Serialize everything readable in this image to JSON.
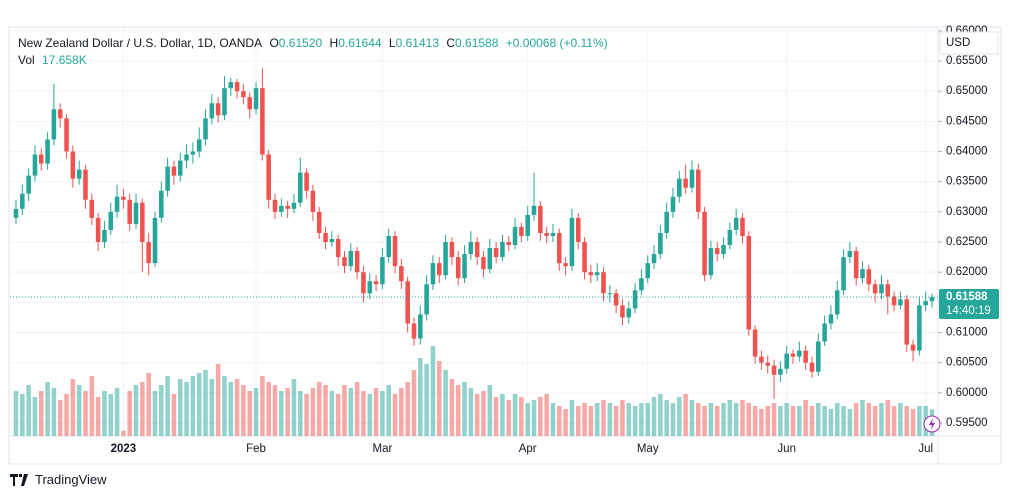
{
  "header": {
    "symbol": "New Zealand Dollar / U.S. Dollar, 1D, OANDA",
    "ohlc": [
      {
        "label": "O",
        "value": "0.61520"
      },
      {
        "label": "H",
        "value": "0.61644"
      },
      {
        "label": "L",
        "value": "0.61413"
      },
      {
        "label": "C",
        "value": "0.61588"
      }
    ],
    "change": "+0.00068 (+0.11%)",
    "volume_label": "Vol",
    "volume_value": "17.658K"
  },
  "currency": "USD",
  "last_price": {
    "label": "0.61588",
    "countdown": "14:40:19"
  },
  "brand": "TradingView",
  "chart_data": {
    "type": "candlestick",
    "up_color": "#26a69a",
    "down_color": "#ef5350",
    "grid": true,
    "ylim": [
      0.59285,
      0.66047
    ],
    "yticks": [
      {
        "value": 0.595,
        "label": "0.59500"
      },
      {
        "value": 0.6,
        "label": "0.60000"
      },
      {
        "value": 0.605,
        "label": "0.60500"
      },
      {
        "value": 0.61,
        "label": "0.61000"
      },
      {
        "value": 0.615,
        "label": "0.61500"
      },
      {
        "value": 0.62,
        "label": "0.62000"
      },
      {
        "value": 0.625,
        "label": "0.62500"
      },
      {
        "value": 0.63,
        "label": "0.63000"
      },
      {
        "value": 0.635,
        "label": "0.63500"
      },
      {
        "value": 0.64,
        "label": "0.64000"
      },
      {
        "value": 0.645,
        "label": "0.64500"
      },
      {
        "value": 0.65,
        "label": "0.65000"
      },
      {
        "value": 0.655,
        "label": "0.65500"
      },
      {
        "value": 0.66,
        "label": "0.66000"
      }
    ],
    "xticks": [
      {
        "value": 17,
        "label": "2023"
      },
      {
        "value": 38,
        "label": "Feb"
      },
      {
        "value": 58,
        "label": "Mar"
      },
      {
        "value": 81,
        "label": "Apr"
      },
      {
        "value": 100,
        "label": "May"
      },
      {
        "value": 122,
        "label": "Jun"
      },
      {
        "value": 144,
        "label": "Jul"
      }
    ],
    "open": [
      0.629,
      0.6305,
      0.633,
      0.636,
      0.6395,
      0.638,
      0.642,
      0.647,
      0.6455,
      0.64,
      0.6355,
      0.637,
      0.632,
      0.629,
      0.625,
      0.627,
      0.63,
      0.6325,
      0.632,
      0.628,
      0.6315,
      0.625,
      0.6215,
      0.629,
      0.6335,
      0.6375,
      0.636,
      0.6385,
      0.6395,
      0.64,
      0.642,
      0.6455,
      0.648,
      0.646,
      0.6505,
      0.6515,
      0.65,
      0.649,
      0.647,
      0.6505,
      0.6395,
      0.632,
      0.63,
      0.631,
      0.6305,
      0.6315,
      0.6365,
      0.6335,
      0.63,
      0.6265,
      0.625,
      0.6255,
      0.6225,
      0.621,
      0.6235,
      0.62,
      0.6165,
      0.6185,
      0.618,
      0.6225,
      0.626,
      0.621,
      0.6185,
      0.6115,
      0.609,
      0.613,
      0.618,
      0.6215,
      0.6195,
      0.625,
      0.6225,
      0.619,
      0.623,
      0.625,
      0.6225,
      0.6205,
      0.624,
      0.6225,
      0.625,
      0.6245,
      0.6275,
      0.626,
      0.6295,
      0.631,
      0.6265,
      0.626,
      0.6265,
      0.6215,
      0.621,
      0.629,
      0.625,
      0.62,
      0.6195,
      0.62,
      0.6165,
      0.6165,
      0.6145,
      0.6125,
      0.614,
      0.617,
      0.619,
      0.6215,
      0.623,
      0.6265,
      0.63,
      0.6325,
      0.6355,
      0.634,
      0.637,
      0.63,
      0.6195,
      0.624,
      0.623,
      0.6245,
      0.627,
      0.629,
      0.626,
      0.6105,
      0.606,
      0.605,
      0.6045,
      0.603,
      0.604,
      0.6065,
      0.606,
      0.607,
      0.605,
      0.6035,
      0.6085,
      0.6115,
      0.613,
      0.617,
      0.6225,
      0.6235,
      0.619,
      0.6205,
      0.618,
      0.6165,
      0.618,
      0.616,
      0.6145,
      0.6155,
      0.608,
      0.607,
      0.6145,
      0.6152
    ],
    "high": [
      0.632,
      0.6345,
      0.6372,
      0.641,
      0.6405,
      0.6432,
      0.6512,
      0.648,
      0.6462,
      0.641,
      0.6385,
      0.6378,
      0.633,
      0.6298,
      0.6285,
      0.6315,
      0.6345,
      0.6338,
      0.633,
      0.633,
      0.6322,
      0.6265,
      0.63,
      0.635,
      0.639,
      0.6385,
      0.6398,
      0.6412,
      0.6415,
      0.644,
      0.647,
      0.6495,
      0.649,
      0.6525,
      0.6522,
      0.652,
      0.6512,
      0.6498,
      0.6515,
      0.6538,
      0.6402,
      0.633,
      0.6322,
      0.6318,
      0.633,
      0.639,
      0.6372,
      0.6345,
      0.6308,
      0.6275,
      0.6268,
      0.6262,
      0.6235,
      0.6248,
      0.6242,
      0.621,
      0.6198,
      0.6195,
      0.624,
      0.6272,
      0.6268,
      0.6222,
      0.6192,
      0.6125,
      0.6145,
      0.6195,
      0.6228,
      0.6225,
      0.6262,
      0.6258,
      0.6235,
      0.6245,
      0.6268,
      0.6258,
      0.6235,
      0.6255,
      0.625,
      0.6262,
      0.626,
      0.629,
      0.6282,
      0.631,
      0.6365,
      0.6318,
      0.6275,
      0.628,
      0.6272,
      0.6225,
      0.6305,
      0.6298,
      0.6258,
      0.6212,
      0.6215,
      0.6208,
      0.6178,
      0.6172,
      0.6155,
      0.6152,
      0.6182,
      0.6205,
      0.6228,
      0.6245,
      0.6278,
      0.6315,
      0.634,
      0.6368,
      0.6378,
      0.6385,
      0.638,
      0.6308,
      0.6252,
      0.625,
      0.6258,
      0.6282,
      0.6305,
      0.6298,
      0.6268,
      0.6112,
      0.607,
      0.6062,
      0.6055,
      0.6052,
      0.6078,
      0.6072,
      0.6085,
      0.6078,
      0.606,
      0.6098,
      0.6128,
      0.6145,
      0.6185,
      0.6238,
      0.625,
      0.6242,
      0.6218,
      0.6212,
      0.6188,
      0.6195,
      0.6188,
      0.6168,
      0.6168,
      0.6162,
      0.6088,
      0.6158,
      0.6168,
      0.61644
    ],
    "low": [
      0.628,
      0.6295,
      0.6318,
      0.635,
      0.6368,
      0.637,
      0.641,
      0.644,
      0.6388,
      0.634,
      0.6345,
      0.6305,
      0.6278,
      0.6235,
      0.624,
      0.6262,
      0.629,
      0.6305,
      0.6268,
      0.6272,
      0.62,
      0.6195,
      0.6208,
      0.6282,
      0.6325,
      0.6345,
      0.635,
      0.6372,
      0.638,
      0.639,
      0.641,
      0.6445,
      0.6448,
      0.6452,
      0.6492,
      0.6488,
      0.6478,
      0.6455,
      0.6462,
      0.6385,
      0.6305,
      0.6288,
      0.6292,
      0.629,
      0.6298,
      0.6308,
      0.6322,
      0.6285,
      0.6255,
      0.6238,
      0.6242,
      0.621,
      0.6198,
      0.6202,
      0.6188,
      0.615,
      0.6155,
      0.6168,
      0.6172,
      0.6215,
      0.6198,
      0.6172,
      0.61,
      0.6078,
      0.608,
      0.612,
      0.617,
      0.6182,
      0.6188,
      0.6212,
      0.6178,
      0.6182,
      0.622,
      0.6212,
      0.6192,
      0.6198,
      0.6215,
      0.6218,
      0.6235,
      0.6238,
      0.625,
      0.6252,
      0.6285,
      0.6252,
      0.6248,
      0.625,
      0.6202,
      0.6195,
      0.6202,
      0.6238,
      0.6188,
      0.6182,
      0.6185,
      0.6152,
      0.615,
      0.6132,
      0.6112,
      0.6115,
      0.6132,
      0.6162,
      0.6182,
      0.6205,
      0.6222,
      0.6255,
      0.629,
      0.6315,
      0.633,
      0.6332,
      0.6288,
      0.6185,
      0.6188,
      0.6218,
      0.6222,
      0.6238,
      0.6262,
      0.6248,
      0.6095,
      0.6048,
      0.6038,
      0.6032,
      0.599,
      0.6018,
      0.6032,
      0.6048,
      0.6052,
      0.6038,
      0.6025,
      0.6028,
      0.6078,
      0.6105,
      0.6122,
      0.6162,
      0.6215,
      0.6178,
      0.6182,
      0.6168,
      0.615,
      0.6155,
      0.613,
      0.6135,
      0.6138,
      0.6068,
      0.6052,
      0.6062,
      0.6135,
      0.61413
    ],
    "close": [
      0.6305,
      0.633,
      0.636,
      0.6395,
      0.638,
      0.642,
      0.647,
      0.6455,
      0.64,
      0.6355,
      0.637,
      0.632,
      0.629,
      0.625,
      0.627,
      0.63,
      0.6325,
      0.632,
      0.628,
      0.6315,
      0.625,
      0.6215,
      0.629,
      0.6335,
      0.6375,
      0.636,
      0.6385,
      0.6395,
      0.64,
      0.642,
      0.6455,
      0.648,
      0.646,
      0.6505,
      0.6515,
      0.65,
      0.649,
      0.647,
      0.6505,
      0.6395,
      0.632,
      0.63,
      0.631,
      0.6305,
      0.6315,
      0.6365,
      0.6335,
      0.63,
      0.6265,
      0.625,
      0.6255,
      0.6225,
      0.621,
      0.6235,
      0.62,
      0.6165,
      0.6185,
      0.618,
      0.6225,
      0.626,
      0.621,
      0.6185,
      0.6115,
      0.609,
      0.613,
      0.618,
      0.6215,
      0.6195,
      0.625,
      0.6225,
      0.619,
      0.623,
      0.625,
      0.6225,
      0.6205,
      0.624,
      0.6225,
      0.625,
      0.6245,
      0.6275,
      0.626,
      0.6295,
      0.631,
      0.6265,
      0.626,
      0.6265,
      0.6215,
      0.621,
      0.629,
      0.625,
      0.62,
      0.6195,
      0.62,
      0.6165,
      0.6165,
      0.6145,
      0.6125,
      0.614,
      0.617,
      0.619,
      0.6215,
      0.623,
      0.6265,
      0.63,
      0.6325,
      0.6355,
      0.634,
      0.637,
      0.63,
      0.6195,
      0.624,
      0.623,
      0.6245,
      0.627,
      0.629,
      0.626,
      0.6105,
      0.606,
      0.605,
      0.6045,
      0.603,
      0.604,
      0.6065,
      0.606,
      0.607,
      0.605,
      0.6035,
      0.6085,
      0.6115,
      0.613,
      0.617,
      0.6225,
      0.6235,
      0.619,
      0.6205,
      0.618,
      0.6165,
      0.618,
      0.616,
      0.6145,
      0.6155,
      0.608,
      0.607,
      0.6145,
      0.6152,
      0.61588
    ],
    "volume": [
      30000,
      28000,
      34000,
      26000,
      30000,
      36000,
      32000,
      24000,
      28000,
      38000,
      34000,
      30000,
      40000,
      26000,
      30000,
      28000,
      32000,
      3500,
      30000,
      34000,
      36000,
      42000,
      30000,
      34000,
      40000,
      28000,
      38000,
      36000,
      40000,
      42000,
      44000,
      38000,
      48000,
      40000,
      36000,
      38000,
      34000,
      30000,
      32000,
      40000,
      36000,
      34000,
      30000,
      32000,
      38000,
      30000,
      28000,
      32000,
      36000,
      34000,
      30000,
      28000,
      34000,
      32000,
      36000,
      30000,
      28000,
      32000,
      30000,
      34000,
      28000,
      32000,
      36000,
      44000,
      52000,
      48000,
      60000,
      50000,
      44000,
      38000,
      34000,
      36000,
      32000,
      28000,
      30000,
      34000,
      26000,
      28000,
      24000,
      28000,
      26000,
      22000,
      24000,
      26000,
      28000,
      22000,
      20000,
      18000,
      24000,
      20000,
      22000,
      20000,
      22000,
      24000,
      22000,
      20000,
      24000,
      22000,
      20000,
      22000,
      22000,
      26000,
      28000,
      24000,
      22000,
      26000,
      28000,
      24000,
      22000,
      20000,
      22000,
      20000,
      22000,
      24000,
      22000,
      24000,
      22000,
      20000,
      18000,
      20000,
      22000,
      20000,
      22000,
      20000,
      20000,
      24000,
      20000,
      22000,
      20000,
      18000,
      22000,
      20000,
      18000,
      22000,
      24000,
      22000,
      20000,
      22000,
      24000,
      20000,
      22000,
      20000,
      18000,
      20000,
      20000,
      17658
    ]
  }
}
